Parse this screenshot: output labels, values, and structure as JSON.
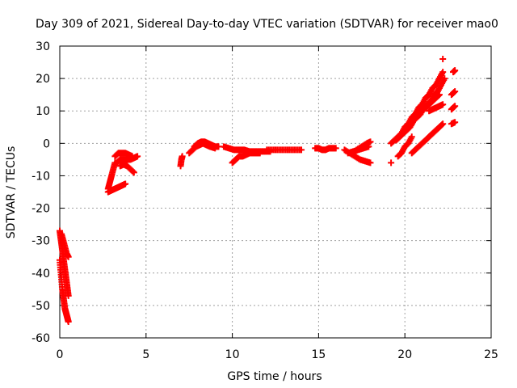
{
  "chart_data": {
    "type": "scatter",
    "title": "Day 309 of 2021, Sidereal Day-to-day VTEC variation (SDTVAR) for receiver mao0",
    "xlabel": "GPS time / hours",
    "ylabel": "SDTVAR / TECUs",
    "xlim": [
      0,
      25
    ],
    "ylim": [
      -60,
      30
    ],
    "xticks": [
      0,
      5,
      10,
      15,
      20,
      25
    ],
    "yticks": [
      -60,
      -50,
      -40,
      -30,
      -20,
      -10,
      0,
      10,
      20,
      30
    ],
    "grid": true,
    "color": "#ff0000",
    "marker": "plus",
    "series": [
      {
        "x": [
          0.0,
          0.05,
          0.1,
          0.15,
          0.2,
          0.25,
          0.3,
          0.35,
          0.4,
          0.45,
          0.5
        ],
        "y": [
          -27,
          -29,
          -31,
          -33,
          -35,
          -37,
          -39,
          -41,
          -43,
          -45,
          -47
        ]
      },
      {
        "x": [
          0.0,
          0.05,
          0.1,
          0.15,
          0.2,
          0.25,
          0.3,
          0.35,
          0.4,
          0.45,
          0.5
        ],
        "y": [
          -36,
          -39,
          -42,
          -45,
          -47,
          -49,
          -51,
          -52,
          -53,
          -54,
          -55
        ]
      },
      {
        "x": [
          0.1,
          0.2,
          0.3,
          0.4,
          0.5
        ],
        "y": [
          -28,
          -30,
          -32,
          -34,
          -35
        ]
      },
      {
        "x": [
          2.8,
          2.9,
          3.0,
          3.1,
          3.2
        ],
        "y": [
          -14,
          -12,
          -10,
          -8,
          -6
        ]
      },
      {
        "x": [
          2.8,
          3.0,
          3.2,
          3.4,
          3.6,
          3.8
        ],
        "y": [
          -15,
          -14.5,
          -14,
          -13.5,
          -13,
          -12.5
        ]
      },
      {
        "x": [
          3.2,
          3.4,
          3.6,
          3.8,
          4.0,
          4.2
        ],
        "y": [
          -4,
          -3,
          -3,
          -3,
          -3.5,
          -4
        ]
      },
      {
        "x": [
          3.3,
          3.5,
          3.7,
          3.9,
          4.1,
          4.3,
          4.5
        ],
        "y": [
          -6,
          -5,
          -5,
          -5,
          -5,
          -4.5,
          -4
        ]
      },
      {
        "x": [
          3.5,
          3.7,
          3.9,
          4.1,
          4.3
        ],
        "y": [
          -7,
          -6.5,
          -7,
          -8,
          -9
        ]
      },
      {
        "x": [
          7.0,
          7.05,
          7.1
        ],
        "y": [
          -7,
          -5,
          -4
        ]
      },
      {
        "x": [
          7.5,
          7.7,
          7.9,
          8.1,
          8.3,
          8.5,
          8.7,
          9.0
        ],
        "y": [
          -3,
          -2,
          -1,
          -0.5,
          0,
          -0.5,
          -1,
          -1.5
        ]
      },
      {
        "x": [
          7.8,
          8.0,
          8.2,
          8.4,
          8.6,
          8.8,
          9.0,
          9.2
        ],
        "y": [
          -1,
          0,
          0.5,
          0.5,
          0,
          -0.5,
          -1,
          -1
        ]
      },
      {
        "x": [
          9.5,
          9.8,
          10.1,
          10.4,
          10.7,
          11.0,
          11.3,
          11.6,
          11.9,
          12.2
        ],
        "y": [
          -1,
          -1.5,
          -2,
          -2,
          -2,
          -2.5,
          -2.5,
          -2.5,
          -2.5,
          -2.5
        ]
      },
      {
        "x": [
          10.0,
          10.2,
          10.4,
          10.6,
          10.8,
          11.0,
          11.2,
          11.4,
          11.6
        ],
        "y": [
          -6,
          -5,
          -4,
          -4,
          -3.5,
          -3,
          -3,
          -3,
          -3
        ]
      },
      {
        "x": [
          12.0,
          12.4,
          12.8,
          13.2,
          13.6,
          14.0
        ],
        "y": [
          -2,
          -2,
          -2,
          -2,
          -2,
          -2
        ]
      },
      {
        "x": [
          14.8,
          15.0,
          15.2,
          15.4,
          15.6,
          15.8,
          16.0
        ],
        "y": [
          -1.5,
          -1.5,
          -2,
          -2,
          -1.5,
          -1.5,
          -1.5
        ]
      },
      {
        "x": [
          16.5,
          16.8,
          17.1,
          17.4,
          17.7,
          18.0
        ],
        "y": [
          -2,
          -3,
          -4,
          -5,
          -5.5,
          -6
        ]
      },
      {
        "x": [
          16.7,
          17.0,
          17.3,
          17.6,
          17.9
        ],
        "y": [
          -3,
          -2.5,
          -2,
          -1.5,
          -1
        ]
      },
      {
        "x": [
          17.2,
          17.5,
          17.8,
          18.0
        ],
        "y": [
          -2,
          -1,
          0,
          0.5
        ]
      },
      {
        "x": [
          19.2,
          19.4,
          19.6,
          19.8,
          20.0,
          20.2,
          20.4,
          20.6,
          20.8,
          21.0,
          21.2,
          21.4,
          21.6,
          21.8,
          22.0,
          22.2
        ],
        "y": [
          0,
          1,
          2,
          3,
          5,
          6,
          8,
          9,
          11,
          12,
          14,
          15,
          17,
          18,
          20,
          22
        ]
      },
      {
        "x": [
          19.5,
          19.7,
          19.9,
          20.1,
          20.3,
          20.5,
          20.7,
          20.9,
          21.1,
          21.3,
          21.5,
          21.7,
          21.9,
          22.1,
          22.3
        ],
        "y": [
          1,
          2,
          3,
          4,
          5,
          7,
          8,
          9,
          11,
          12,
          13,
          15,
          16,
          18,
          20
        ]
      },
      {
        "x": [
          19.8,
          20.0,
          20.2,
          20.4,
          20.6,
          20.8,
          21.0,
          21.2,
          21.4,
          21.6,
          21.8,
          22.0
        ],
        "y": [
          3,
          4,
          5,
          6,
          8,
          9,
          10,
          11,
          12,
          13,
          14,
          15
        ]
      },
      {
        "x": [
          19.6,
          19.8,
          20.0,
          20.2,
          20.4
        ],
        "y": [
          -4,
          -3,
          -1,
          0,
          2
        ]
      },
      {
        "x": [
          19.2
        ],
        "y": [
          -6
        ]
      },
      {
        "x": [
          20.4,
          20.6,
          20.8,
          21.0,
          21.2,
          21.4,
          21.6,
          21.8,
          22.0,
          22.2
        ],
        "y": [
          -3,
          -2,
          -1,
          0,
          1,
          2,
          3,
          4,
          5,
          6
        ]
      },
      {
        "x": [
          21.4,
          21.6,
          21.8,
          22.0,
          22.2
        ],
        "y": [
          10,
          10.5,
          11,
          11.5,
          12
        ]
      },
      {
        "x": [
          22.2
        ],
        "y": [
          26
        ]
      },
      {
        "x": [
          22.8,
          22.9
        ],
        "y": [
          22,
          22.5
        ]
      },
      {
        "x": [
          22.7,
          22.9
        ],
        "y": [
          15,
          16
        ]
      },
      {
        "x": [
          22.7,
          22.9
        ],
        "y": [
          10.5,
          11.5
        ]
      },
      {
        "x": [
          22.7,
          22.9
        ],
        "y": [
          6,
          6.5
        ]
      }
    ]
  }
}
